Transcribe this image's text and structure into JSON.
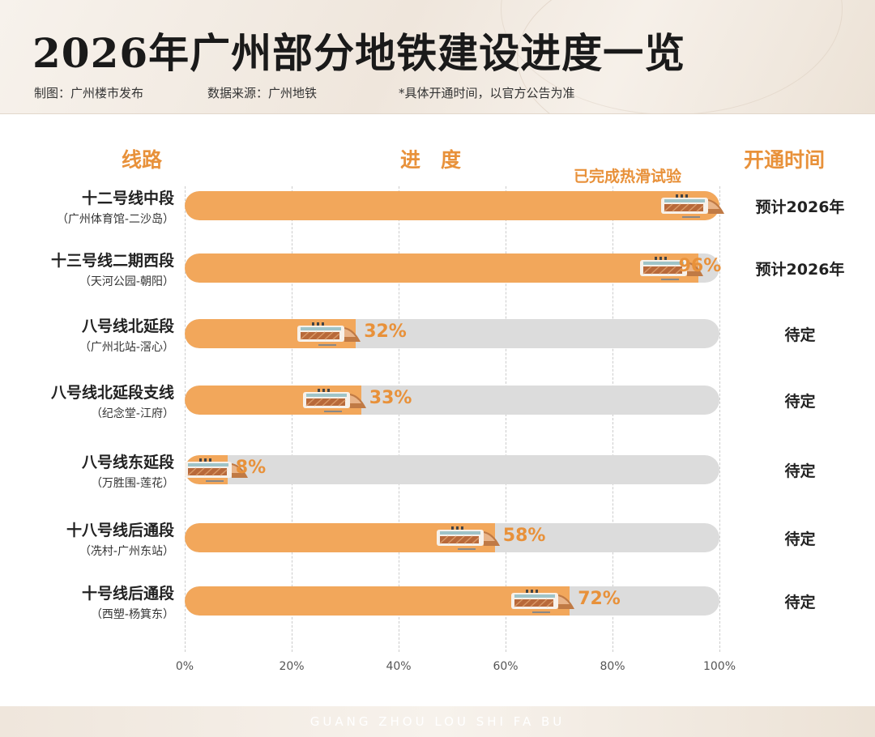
{
  "header": {
    "title": "2026年广州部分地铁建设进度一览",
    "made_by": "制图：广州楼市发布",
    "source": "数据来源：广州地铁",
    "note": "*具体开通时间，以官方公告为准"
  },
  "columns": {
    "line": "线路",
    "progress": "进　度",
    "open_time": "开通时间"
  },
  "annotation": "已完成热滑试验",
  "footer": "GUANG ZHOU LOU SHI FA BU",
  "colors": {
    "accent": "#e8913a",
    "bar_fill": "#f2a75b",
    "bar_track": "#dcdcdc"
  },
  "chart_data": {
    "type": "bar",
    "orientation": "horizontal",
    "xlim": [
      0,
      100
    ],
    "x_ticks": [
      "0%",
      "20%",
      "40%",
      "60%",
      "80%",
      "100%"
    ],
    "grid": true,
    "rows": [
      {
        "name": "十二号线中段",
        "segment": "（广州体育馆-二沙岛）",
        "value": 100,
        "label": "",
        "open": "预计2026年"
      },
      {
        "name": "十三号线二期西段",
        "segment": "（天河公园-朝阳）",
        "value": 96,
        "label": "96%",
        "open": "预计2026年"
      },
      {
        "name": "八号线北延段",
        "segment": "（广州北站-滘心）",
        "value": 32,
        "label": "32%",
        "open": "待定"
      },
      {
        "name": "八号线北延段支线",
        "segment": "（纪念堂-江府）",
        "value": 33,
        "label": "33%",
        "open": "待定"
      },
      {
        "name": "八号线东延段",
        "segment": "（万胜围-莲花）",
        "value": 8,
        "label": "8%",
        "open": "待定"
      },
      {
        "name": "十八号线后通段",
        "segment": "（冼村-广州东站）",
        "value": 58,
        "label": "58%",
        "open": "待定"
      },
      {
        "name": "十号线后通段",
        "segment": "（西塑-杨箕东）",
        "value": 72,
        "label": "72%",
        "open": "待定"
      }
    ]
  }
}
